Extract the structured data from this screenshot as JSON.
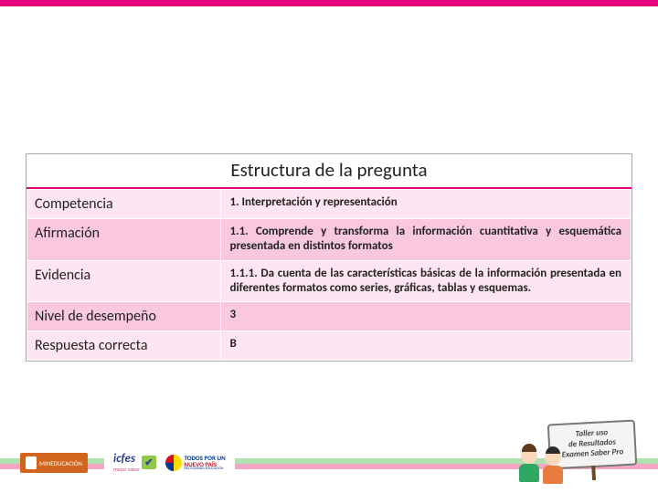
{
  "colors": {
    "accent": "#e6007e",
    "row_light": "#fde6f1",
    "row_dark": "#f9c8df",
    "band_top": "#aee3b0",
    "band_bottom": "#f3a6c5"
  },
  "table": {
    "title": "Estructura de la pregunta",
    "rows": [
      {
        "label": "Competencia",
        "value": "1. Interpretación y representación",
        "shade": "light"
      },
      {
        "label": "Afirmación",
        "value": "1.1. Comprende y transforma la información cuantitativa y esquemática presentada en distintos formatos",
        "shade": "dark"
      },
      {
        "label": "Evidencia",
        "value": "1.1.1. Da cuenta de las características básicas de la información presentada en diferentes formatos como series, gráficas, tablas y esquemas.",
        "shade": "light"
      },
      {
        "label": "Nivel de desempeño",
        "value": "3",
        "shade": "dark"
      },
      {
        "label": "Respuesta correcta",
        "value": "B",
        "shade": "light"
      }
    ]
  },
  "footer": {
    "mineducacion": "MINEDUCACIÓN",
    "icfes": "icfes",
    "icfes_sub": "mejor saber",
    "icfes_check": "✔",
    "todos_l1": "TODOS POR UN",
    "todos_l2": "NUEVO PAÍS",
    "todos_l3": "PAZ EQUIDAD EDUCACIÓN",
    "board_l1": "Taller uso",
    "board_l2": "de Resultados",
    "board_l3": "Examen Saber Pro"
  }
}
